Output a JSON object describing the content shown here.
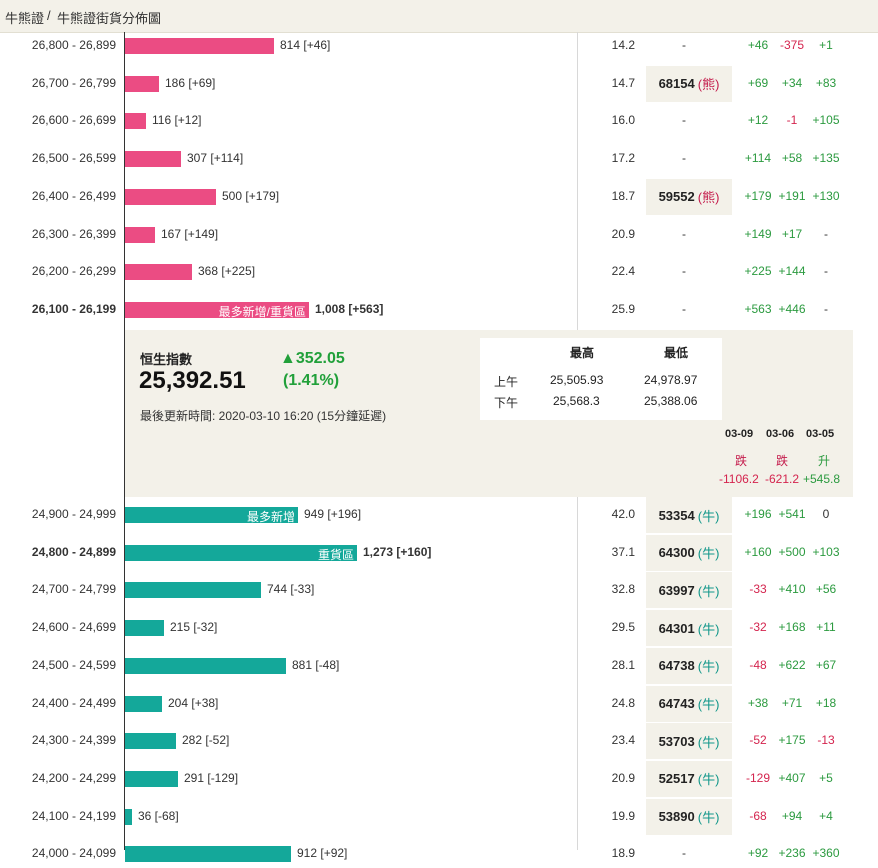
{
  "breadcrumb": {
    "home": "牛熊證",
    "sep": "/",
    "current": "牛熊證街貨分佈圖"
  },
  "colors": {
    "bear": "#eb4c83",
    "bull": "#14a89a",
    "positive": "#2b9a3f",
    "negative": "#d4244e",
    "panel_bg": "#f3f1e9"
  },
  "bear_rows": [
    {
      "range": "26,800 - 26,899",
      "count": "814 [+46]",
      "count_value": 814,
      "ratio": "14.2",
      "code": "",
      "pill": "",
      "d1": "+46",
      "d2": "-375",
      "d3": "+1",
      "bold": false,
      "tag": ""
    },
    {
      "range": "26,700 - 26,799",
      "count": "186 [+69]",
      "count_value": 186,
      "ratio": "14.7",
      "code": "68154",
      "pill": "(熊)",
      "d1": "+69",
      "d2": "+34",
      "d3": "+83",
      "bold": false,
      "tag": ""
    },
    {
      "range": "26,600 - 26,699",
      "count": "116 [+12]",
      "count_value": 116,
      "ratio": "16.0",
      "code": "",
      "pill": "",
      "d1": "+12",
      "d2": "-1",
      "d3": "+105",
      "bold": false,
      "tag": ""
    },
    {
      "range": "26,500 - 26,599",
      "count": "307 [+114]",
      "count_value": 307,
      "ratio": "17.2",
      "code": "",
      "pill": "",
      "d1": "+114",
      "d2": "+58",
      "d3": "+135",
      "bold": false,
      "tag": ""
    },
    {
      "range": "26,400 - 26,499",
      "count": "500 [+179]",
      "count_value": 500,
      "ratio": "18.7",
      "code": "59552",
      "pill": "(熊)",
      "d1": "+179",
      "d2": "+191",
      "d3": "+130",
      "bold": false,
      "tag": ""
    },
    {
      "range": "26,300 - 26,399",
      "count": "167 [+149]",
      "count_value": 167,
      "ratio": "20.9",
      "code": "",
      "pill": "",
      "d1": "+149",
      "d2": "+17",
      "d3": "-",
      "bold": false,
      "tag": ""
    },
    {
      "range": "26,200 - 26,299",
      "count": "368 [+225]",
      "count_value": 368,
      "ratio": "22.4",
      "code": "",
      "pill": "",
      "d1": "+225",
      "d2": "+144",
      "d3": "-",
      "bold": false,
      "tag": ""
    },
    {
      "range": "26,100 - 26,199",
      "count": "1,008 [+563]",
      "count_value": 1008,
      "ratio": "25.9",
      "code": "",
      "pill": "",
      "d1": "+563",
      "d2": "+446",
      "d3": "-",
      "bold": true,
      "tag": "最多新增/重貨區"
    }
  ],
  "index": {
    "label": "恒生指數",
    "value": "25,392.51",
    "change": "▲352.05",
    "change_pct": "(1.41%)",
    "updated": "最後更新時間: 2020-03-10 16:20 (15分鐘延遲)",
    "high_label": "最高",
    "low_label": "最低",
    "am_label": "上午",
    "am_high": "25,505.93",
    "am_low": "24,978.97",
    "pm_label": "下午",
    "pm_high": "25,568.3",
    "pm_low": "25,388.06"
  },
  "history": [
    {
      "date": "03-09",
      "dir": "跌",
      "points": "-1106.2"
    },
    {
      "date": "03-06",
      "dir": "跌",
      "points": "-621.2"
    },
    {
      "date": "03-05",
      "dir": "升",
      "points": "+545.8"
    }
  ],
  "bull_rows": [
    {
      "range": "24,900 - 24,999",
      "count": "949 [+196]",
      "count_value": 949,
      "ratio": "42.0",
      "code": "53354",
      "pill": "(牛)",
      "d1": "+196",
      "d2": "+541",
      "d3": "0",
      "bold": false,
      "tag": "最多新增"
    },
    {
      "range": "24,800 - 24,899",
      "count": "1,273 [+160]",
      "count_value": 1273,
      "ratio": "37.1",
      "code": "64300",
      "pill": "(牛)",
      "d1": "+160",
      "d2": "+500",
      "d3": "+103",
      "bold": true,
      "tag": "重貨區"
    },
    {
      "range": "24,700 - 24,799",
      "count": "744 [-33]",
      "count_value": 744,
      "ratio": "32.8",
      "code": "63997",
      "pill": "(牛)",
      "d1": "-33",
      "d2": "+410",
      "d3": "+56",
      "bold": false,
      "tag": ""
    },
    {
      "range": "24,600 - 24,699",
      "count": "215 [-32]",
      "count_value": 215,
      "ratio": "29.5",
      "code": "64301",
      "pill": "(牛)",
      "d1": "-32",
      "d2": "+168",
      "d3": "+11",
      "bold": false,
      "tag": ""
    },
    {
      "range": "24,500 - 24,599",
      "count": "881 [-48]",
      "count_value": 881,
      "ratio": "28.1",
      "code": "64738",
      "pill": "(牛)",
      "d1": "-48",
      "d2": "+622",
      "d3": "+67",
      "bold": false,
      "tag": ""
    },
    {
      "range": "24,400 - 24,499",
      "count": "204 [+38]",
      "count_value": 204,
      "ratio": "24.8",
      "code": "64743",
      "pill": "(牛)",
      "d1": "+38",
      "d2": "+71",
      "d3": "+18",
      "bold": false,
      "tag": ""
    },
    {
      "range": "24,300 - 24,399",
      "count": "282 [-52]",
      "count_value": 282,
      "ratio": "23.4",
      "code": "53703",
      "pill": "(牛)",
      "d1": "-52",
      "d2": "+175",
      "d3": "-13",
      "bold": false,
      "tag": ""
    },
    {
      "range": "24,200 - 24,299",
      "count": "291 [-129]",
      "count_value": 291,
      "ratio": "20.9",
      "code": "52517",
      "pill": "(牛)",
      "d1": "-129",
      "d2": "+407",
      "d3": "+5",
      "bold": false,
      "tag": ""
    },
    {
      "range": "24,100 - 24,199",
      "count": "36 [-68]",
      "count_value": 36,
      "ratio": "19.9",
      "code": "53890",
      "pill": "(牛)",
      "d1": "-68",
      "d2": "+94",
      "d3": "+4",
      "bold": false,
      "tag": ""
    },
    {
      "range": "24,000 - 24,099",
      "count": "912 [+92]",
      "count_value": 912,
      "ratio": "18.9",
      "code": "",
      "pill": "",
      "d1": "+92",
      "d2": "+236",
      "d3": "+360",
      "bold": false,
      "tag": ""
    }
  ],
  "empty_code": "-"
}
